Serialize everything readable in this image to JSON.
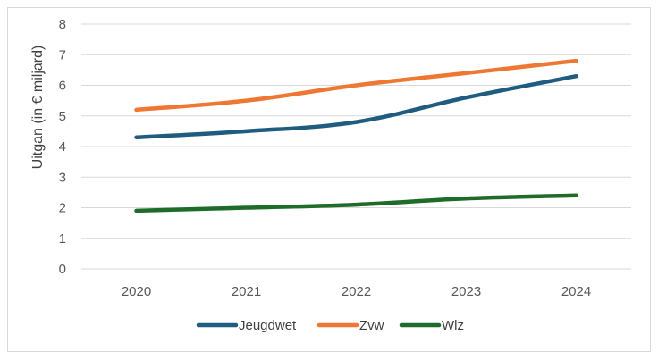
{
  "chart_data": {
    "type": "line",
    "title": "",
    "xlabel": "",
    "ylabel": "Uitgan (in € miljard)",
    "categories": [
      "2020",
      "2021",
      "2022",
      "2023",
      "2024"
    ],
    "ylim": [
      0,
      8
    ],
    "yticks": [
      "0",
      "1",
      "2",
      "3",
      "4",
      "5",
      "6",
      "7",
      "8"
    ],
    "grid": true,
    "legend_position": "bottom",
    "series": [
      {
        "name": "Jeugdwet",
        "color": "#1f5c7f",
        "values": [
          4.3,
          4.5,
          4.8,
          5.6,
          6.3
        ]
      },
      {
        "name": "Zvw",
        "color": "#ee7733",
        "values": [
          5.2,
          5.5,
          6.0,
          6.4,
          6.8
        ]
      },
      {
        "name": "Wlz",
        "color": "#1f6b2a",
        "values": [
          1.9,
          2.0,
          2.1,
          2.3,
          2.4
        ]
      }
    ]
  }
}
